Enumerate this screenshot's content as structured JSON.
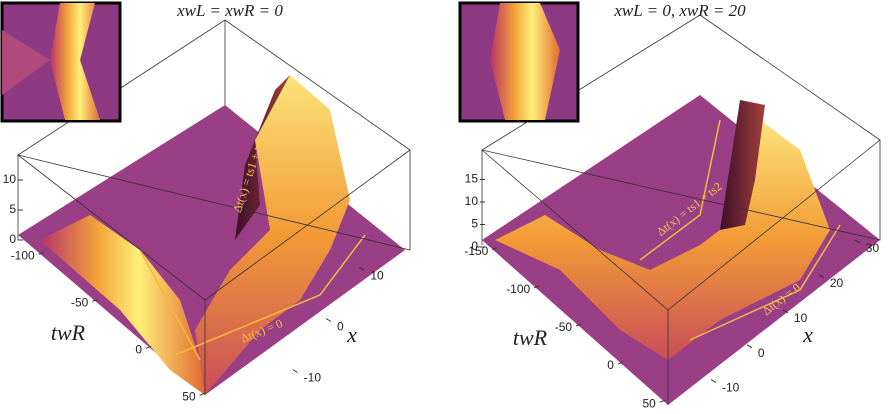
{
  "chart_data": [
    {
      "type": "surface3d",
      "title": "xwL = xwR = 0",
      "x_label": "x",
      "y_label": "twR",
      "annotations": [
        "Δt(x) = ts1 + ts2",
        "Δt(x) = 0"
      ],
      "xlim": [
        -15,
        15
      ],
      "xticks": [
        -10,
        0,
        10
      ],
      "ylim": [
        -110,
        55
      ],
      "yticks": [
        -100,
        -50,
        0,
        50
      ],
      "zlim": [
        0,
        12
      ],
      "zticks": [
        0,
        5,
        10
      ]
    },
    {
      "type": "surface3d",
      "title": "xwL = 0, xwR = 20",
      "x_label": "x",
      "y_label": "twR",
      "annotations": [
        "Δt(x) = ts1 + ts2",
        "Δt(x) = 0"
      ],
      "xlim": [
        -15,
        32
      ],
      "xticks": [
        -10,
        0,
        10,
        20,
        30
      ],
      "ylim": [
        -160,
        55
      ],
      "yticks": [
        -150,
        -100,
        -50,
        0,
        50
      ],
      "zlim": [
        0,
        18
      ],
      "zticks": [
        0,
        5,
        10,
        15
      ]
    }
  ]
}
